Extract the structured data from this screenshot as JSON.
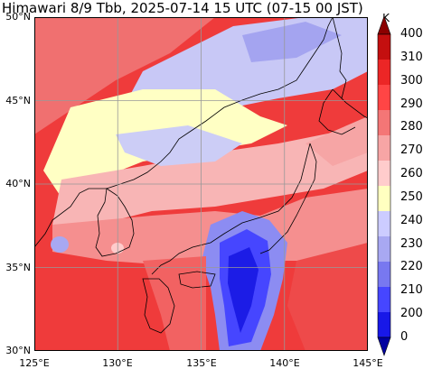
{
  "title": "Himawari 8/9 Tbb, 2025-07-14 15 UTC (07-15 00 JST)",
  "map": {
    "lat_ticks": [
      "50°N",
      "45°N",
      "40°N",
      "35°N",
      "30°N"
    ],
    "lon_ticks": [
      "125°E",
      "130°E",
      "135°E",
      "140°E",
      "145°E"
    ],
    "lat_range": [
      30,
      50
    ],
    "lon_range": [
      125,
      145
    ],
    "grid": true
  },
  "colorbar": {
    "units": "K",
    "levels": [
      "400",
      "310",
      "300",
      "290",
      "280",
      "270",
      "260",
      "250",
      "240",
      "230",
      "220",
      "210",
      "200",
      "0"
    ],
    "colors": [
      "#8b0000",
      "#c40f0f",
      "#ec2626",
      "#ff4545",
      "#f47676",
      "#f7a5a5",
      "#ffcccc",
      "#ffffc0",
      "#ccccff",
      "#a8a8f2",
      "#7878f0",
      "#4646ff",
      "#1818e8",
      "#0000a0"
    ],
    "extend": "both"
  },
  "colors": {
    "warm": "#ee3a3a",
    "pink": "#f59a9a",
    "lightpink": "#ffcccc",
    "yellow": "#ffffc4",
    "lavender": "#c6c6f8",
    "blue": "#7a7af0",
    "deepblue": "#1c1ce0"
  }
}
